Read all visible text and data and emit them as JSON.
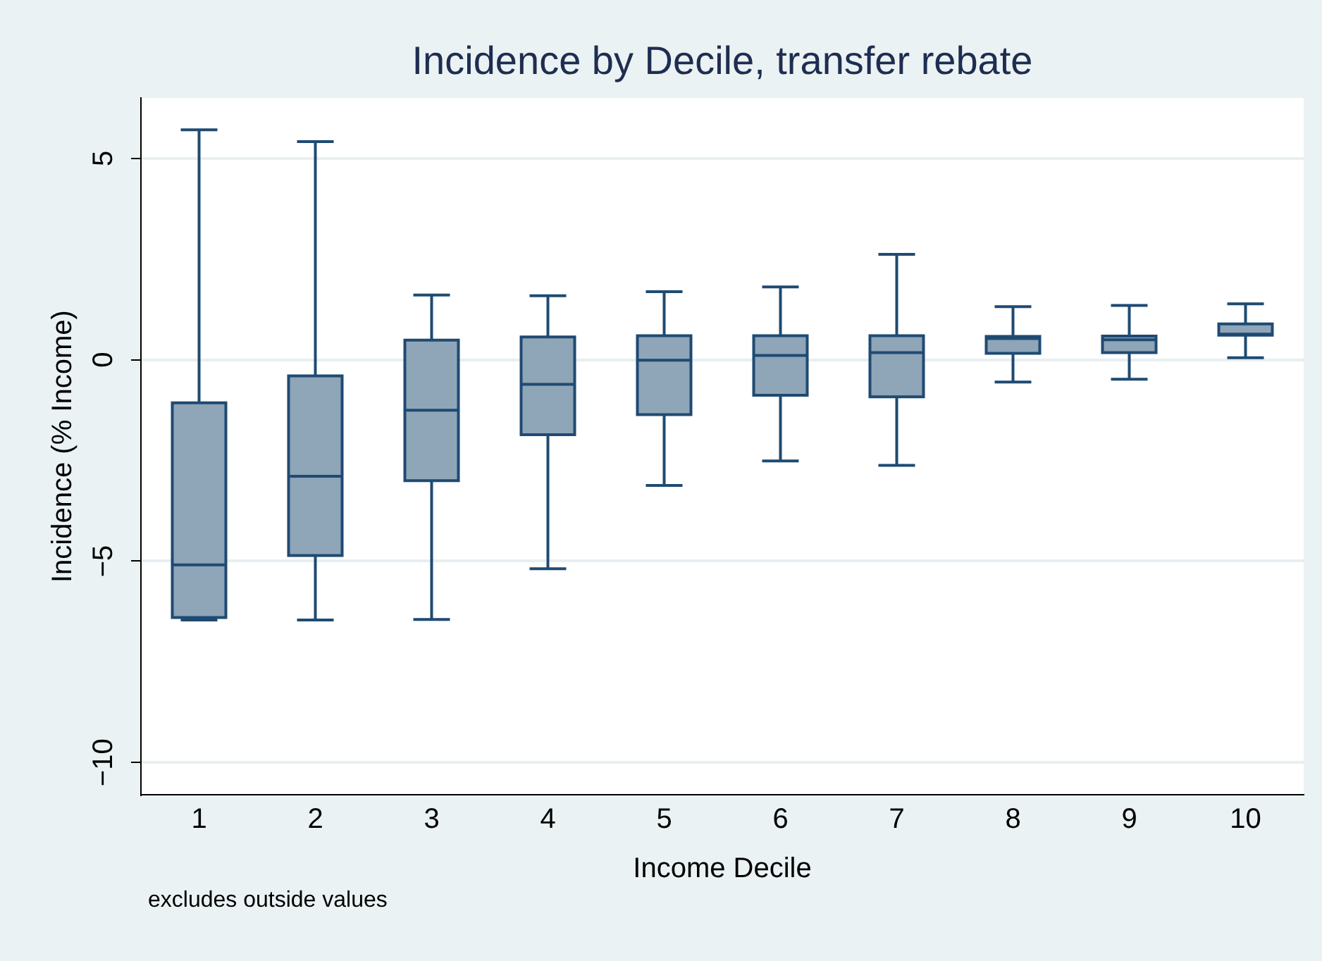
{
  "chart_data": {
    "type": "box",
    "title": "Incidence by Decile, transfer rebate",
    "xlabel": "Income Decile",
    "ylabel": "Incidence (% Income)",
    "categories": [
      "1",
      "2",
      "3",
      "4",
      "5",
      "6",
      "7",
      "8",
      "9",
      "10"
    ],
    "boxes": [
      {
        "low": -6.46,
        "q1": -6.4,
        "median": -5.09,
        "q3": -1.07,
        "high": 5.71
      },
      {
        "low": -6.46,
        "q1": -4.86,
        "median": -2.89,
        "q3": -0.4,
        "high": 5.42
      },
      {
        "low": -6.45,
        "q1": -3.0,
        "median": -1.25,
        "q3": 0.49,
        "high": 1.61
      },
      {
        "low": -5.19,
        "q1": -1.86,
        "median": -0.61,
        "q3": 0.57,
        "high": 1.59
      },
      {
        "low": -3.12,
        "q1": -1.36,
        "median": -0.01,
        "q3": 0.6,
        "high": 1.69
      },
      {
        "low": -2.51,
        "q1": -0.88,
        "median": 0.11,
        "q3": 0.6,
        "high": 1.81
      },
      {
        "low": -2.62,
        "q1": -0.92,
        "median": 0.18,
        "q3": 0.6,
        "high": 2.62
      },
      {
        "low": -0.55,
        "q1": 0.16,
        "median": 0.53,
        "q3": 0.58,
        "high": 1.32
      },
      {
        "low": -0.48,
        "q1": 0.18,
        "median": 0.5,
        "q3": 0.59,
        "high": 1.35
      },
      {
        "low": 0.05,
        "q1": 0.61,
        "median": 0.64,
        "q3": 0.89,
        "high": 1.39
      }
    ],
    "color": "#8fa5b8",
    "ylim": [
      -10.8,
      6.5
    ],
    "yticks": [
      {
        "value": -10,
        "label": "−10"
      },
      {
        "value": -5,
        "label": "−5"
      },
      0,
      5
    ],
    "grid": "y",
    "annotations": [
      "excludes outside values"
    ]
  }
}
